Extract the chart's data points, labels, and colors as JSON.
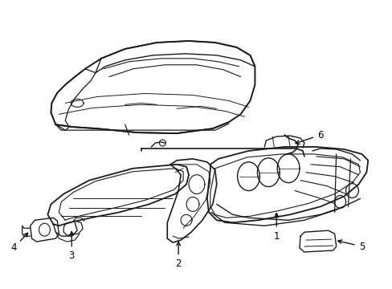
{
  "background_color": "#ffffff",
  "line_color": "#1a1a1a",
  "line_width": 1.0,
  "label_fontsize": 8.5,
  "figsize": [
    4.89,
    3.6
  ],
  "dpi": 100
}
